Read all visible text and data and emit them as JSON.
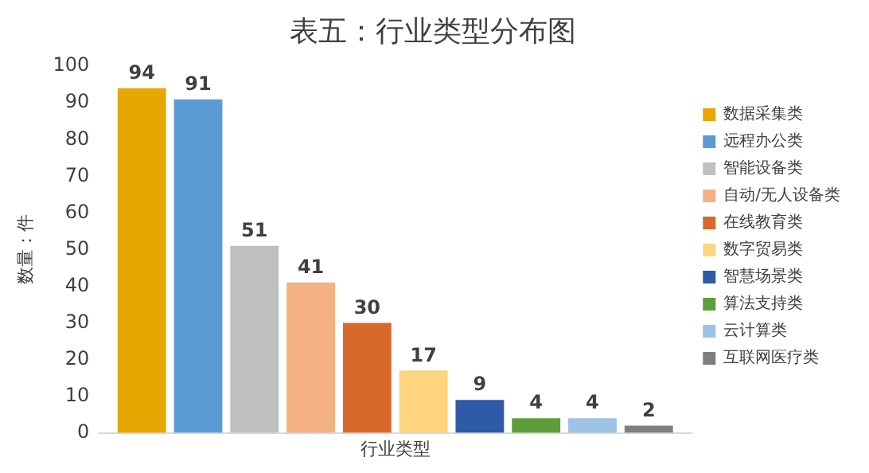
{
  "chart_data": {
    "type": "bar",
    "title": "表五：行业类型分布图",
    "xlabel": "行业类型",
    "ylabel": "数量：件",
    "categories": [
      null
    ],
    "series": [
      {
        "name": "数据采集类",
        "color": "#e6a800",
        "values": [
          94
        ]
      },
      {
        "name": "远程办公类",
        "color": "#5b9bd5",
        "values": [
          91
        ]
      },
      {
        "name": "智能设备类",
        "color": "#bfbfbf",
        "values": [
          51
        ]
      },
      {
        "name": "自动/无人设备类",
        "color": "#f4b183",
        "values": [
          41
        ]
      },
      {
        "name": "在线教育类",
        "color": "#d9692a",
        "values": [
          30
        ]
      },
      {
        "name": "数字贸易类",
        "color": "#ffd47f",
        "values": [
          17
        ]
      },
      {
        "name": "智慧场景类",
        "color": "#2e5aa8",
        "values": [
          9
        ]
      },
      {
        "name": "算法支持类",
        "color": "#5e9e3a",
        "values": [
          4
        ]
      },
      {
        "name": "云计算类",
        "color": "#9dc3e6",
        "values": [
          4
        ]
      },
      {
        "name": "互联网医疗类",
        "color": "#7f7f7f",
        "values": [
          2
        ]
      }
    ],
    "ylim": [
      0,
      100
    ],
    "yticks": [
      0,
      10,
      20,
      30,
      40,
      50,
      60,
      70,
      80,
      90,
      100
    ],
    "grid": false,
    "legend": "right",
    "data_labels": true,
    "tick_labels": "y"
  }
}
